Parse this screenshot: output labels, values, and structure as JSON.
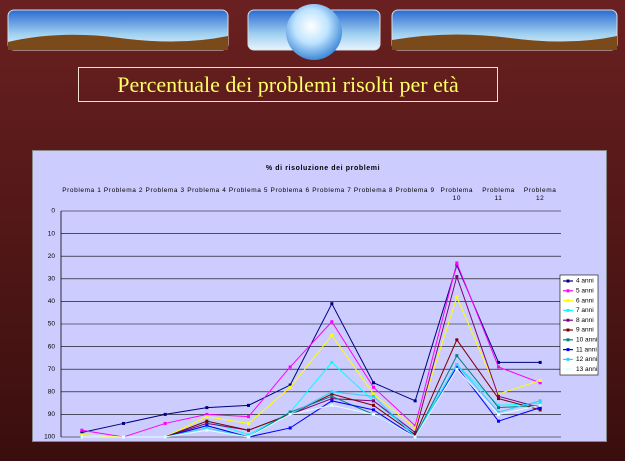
{
  "slide": {
    "title": "Percentuale dei problemi risolti per età"
  },
  "chart_data": {
    "type": "line",
    "title": "% di risoluzione dei problemi",
    "categories": [
      "Problema 1",
      "Problema 2",
      "Problema 3",
      "Problema 4",
      "Problema 5",
      "Problema 6",
      "Problema 7",
      "Problema 8",
      "Problema 9",
      "Problema 10",
      "Problema 11",
      "Problema 12"
    ],
    "ylim": [
      0,
      100
    ],
    "y_reversed": true,
    "yticks": [
      0,
      10,
      20,
      30,
      40,
      50,
      60,
      70,
      80,
      90,
      100
    ],
    "grid": true,
    "legend": "right",
    "series": [
      {
        "name": "4 anni",
        "color": "#000080",
        "values": [
          98,
          94,
          90,
          87,
          86,
          77,
          41,
          76,
          84,
          24,
          67,
          67
        ]
      },
      {
        "name": "5 anni",
        "color": "#ff00ff",
        "values": [
          97,
          100,
          94,
          90,
          91,
          69,
          49,
          78,
          95,
          23,
          69,
          76
        ]
      },
      {
        "name": "6 anni",
        "color": "#ffff00",
        "values": [
          99,
          100,
          100,
          91,
          94,
          78,
          55,
          81,
          96,
          38,
          81,
          75
        ]
      },
      {
        "name": "7 anni",
        "color": "#00ffff",
        "values": [
          100,
          100,
          100,
          93,
          99,
          89,
          67,
          84,
          99,
          68,
          86,
          85
        ]
      },
      {
        "name": "8 anni",
        "color": "#800080",
        "values": [
          100,
          100,
          100,
          94,
          97,
          90,
          83,
          84,
          98,
          29,
          82,
          87
        ]
      },
      {
        "name": "9 anni",
        "color": "#800000",
        "values": [
          100,
          100,
          100,
          93,
          97,
          90,
          81,
          86,
          99,
          57,
          83,
          88
        ]
      },
      {
        "name": "10 anni",
        "color": "#008080",
        "values": [
          100,
          100,
          100,
          95,
          100,
          89,
          82,
          90,
          100,
          64,
          87,
          86
        ]
      },
      {
        "name": "11 anni",
        "color": "#0000ff",
        "values": [
          100,
          100,
          100,
          95,
          100,
          96,
          84,
          88,
          100,
          69,
          93,
          87
        ]
      },
      {
        "name": "12 anni",
        "color": "#33ccff",
        "values": [
          100,
          100,
          100,
          96,
          100,
          90,
          80,
          82,
          100,
          68,
          89,
          84
        ]
      },
      {
        "name": "13 anni",
        "color": "#e0ffff",
        "values": [
          100,
          100,
          100,
          97,
          100,
          90,
          86,
          90,
          100,
          70,
          90,
          86
        ]
      }
    ]
  }
}
